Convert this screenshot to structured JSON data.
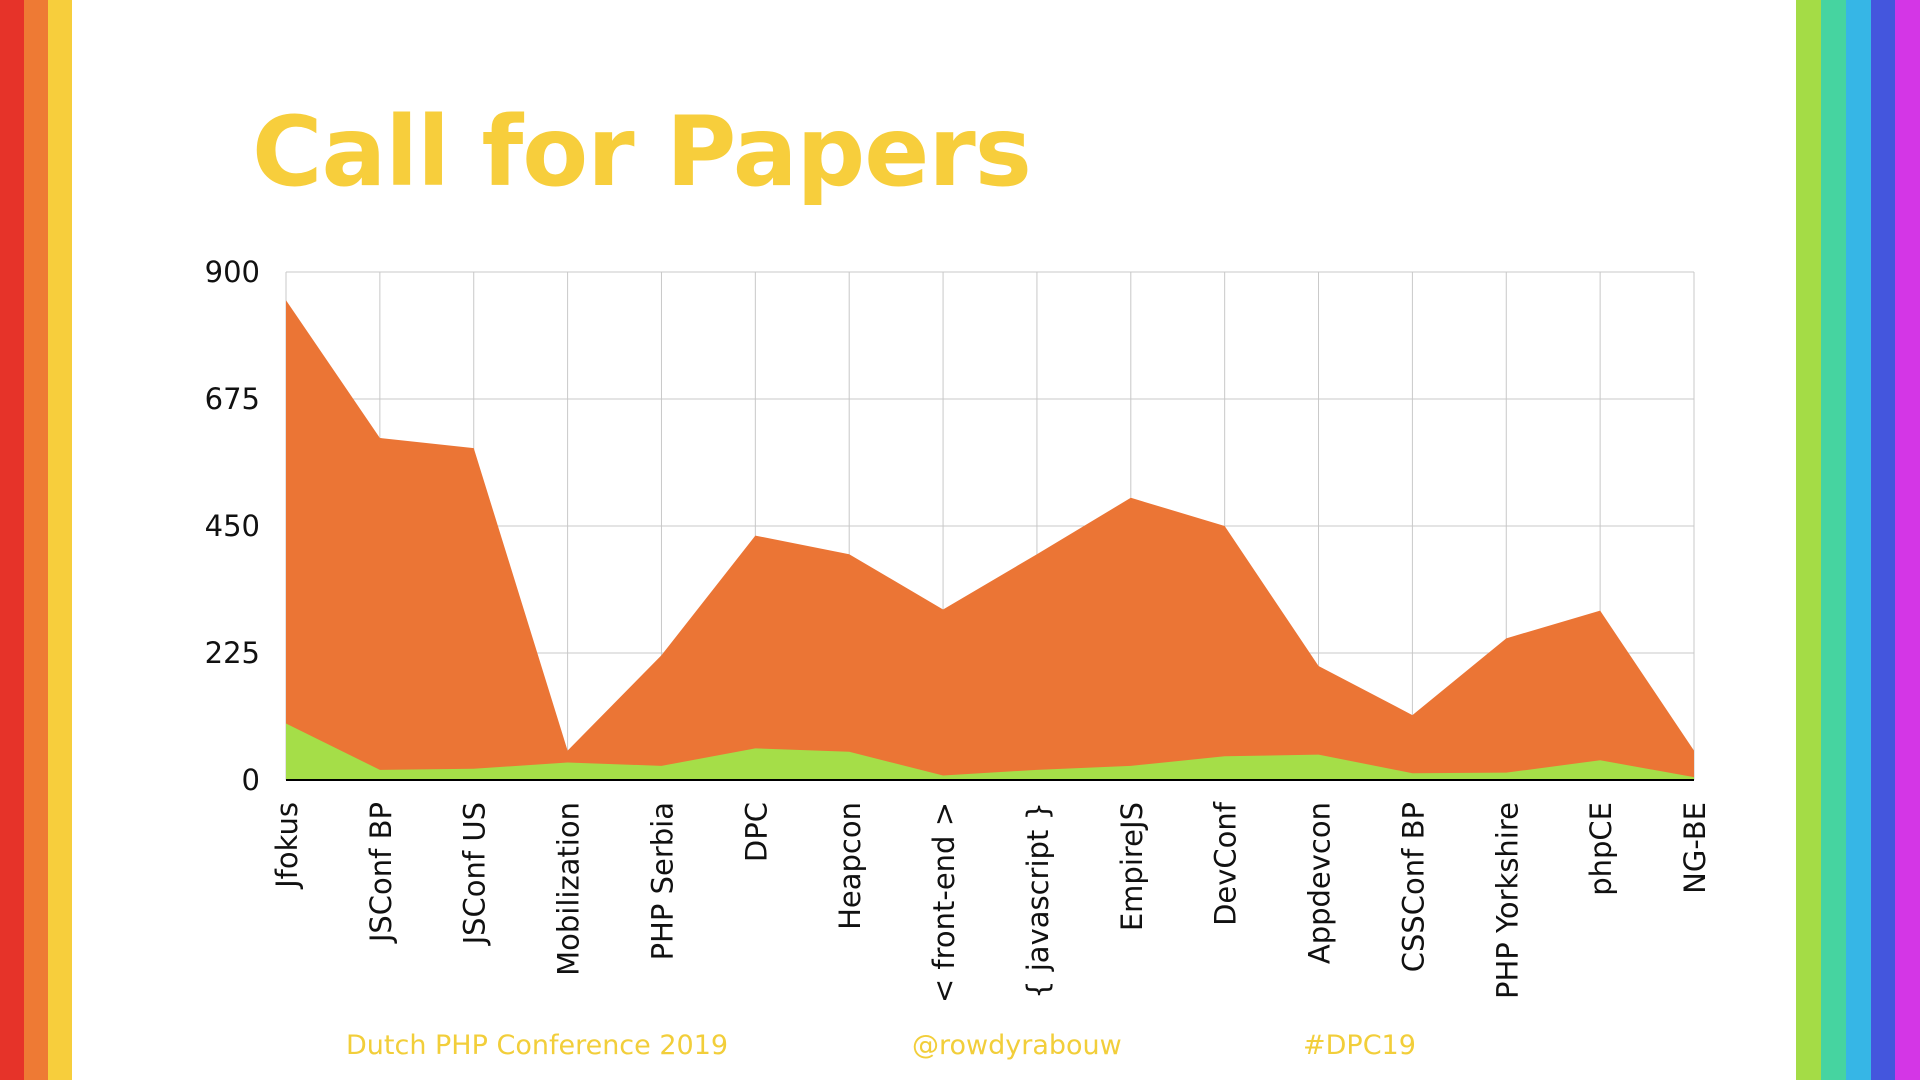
{
  "slide": {
    "title": "Call for Papers",
    "footer": [
      "Dutch PHP Conference 2019",
      "@rowdyrabouw",
      "#DPC19"
    ]
  },
  "colors": {
    "title": "#F7CE3C",
    "footer": "#F2CE3A",
    "left_stripes": [
      "#E63329",
      "#EE7A34",
      "#F7CE3C"
    ],
    "right_stripes": [
      "#A4DC46",
      "#46D4A0",
      "#36B6E6",
      "#4456DD",
      "#D436E6"
    ],
    "series_total": "#EB7535",
    "series_bottom": "#A5DE48",
    "grid": "#C8C8C8",
    "axis": "#000000",
    "tick_text": "#111111"
  },
  "chart_data": {
    "type": "area",
    "stacked": false,
    "categories": [
      "Jfokus",
      "JSConf BP",
      "JSConf US",
      "Mobilization",
      "PHP Serbia",
      "DPC",
      "Heapcon",
      "< front-end >",
      "{ javascript }",
      "EmpireJS",
      "DevConf",
      "Appdevcon",
      "CSSConf BP",
      "PHP Yorkshire",
      "phpCE",
      "NG-BE"
    ],
    "series": [
      {
        "values": [
          850,
          606,
          588,
          52,
          221,
          433,
          400,
          302,
          400,
          500,
          450,
          202,
          115,
          251,
          300,
          52
        ]
      },
      {
        "values": [
          100,
          18,
          20,
          31,
          25,
          56,
          50,
          8,
          18,
          25,
          42,
          45,
          12,
          13,
          35,
          5
        ]
      }
    ],
    "yticks": [
      0,
      225,
      450,
      675,
      900
    ],
    "ylim": [
      0,
      900
    ],
    "grid": true,
    "legend": "none"
  }
}
